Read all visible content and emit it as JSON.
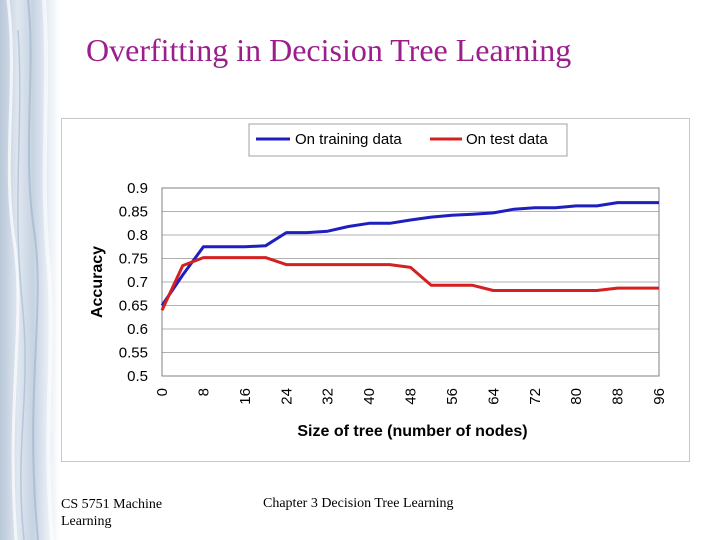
{
  "slide": {
    "title": "Overfitting in Decision Tree Learning",
    "footer_left": "CS 5751 Machine Learning",
    "footer_center": "Chapter 3  Decision Tree Learning"
  },
  "colors": {
    "title": "#9b1e8c",
    "training": "#1f1fbf",
    "test": "#d42020"
  },
  "chart_data": {
    "type": "line",
    "xlabel": "Size of tree (number of nodes)",
    "ylabel": "Accuracy",
    "xlim": [
      0,
      96
    ],
    "ylim": [
      0.5,
      0.9
    ],
    "x_ticks": [
      0,
      8,
      16,
      24,
      32,
      40,
      48,
      56,
      64,
      72,
      80,
      88,
      96
    ],
    "y_ticks": [
      0.5,
      0.55,
      0.6,
      0.65,
      0.7,
      0.75,
      0.8,
      0.85,
      0.9
    ],
    "y_tick_labels": [
      "0.5",
      "0.55",
      "0.6",
      "0.65",
      "0.7",
      "0.75",
      "0.8",
      "0.85",
      "0.9"
    ],
    "legend_position": "top",
    "grid": true,
    "series": [
      {
        "name": "On training data",
        "color": "#1f1fbf",
        "x": [
          0,
          4,
          8,
          12,
          16,
          20,
          24,
          28,
          32,
          36,
          40,
          44,
          48,
          52,
          56,
          60,
          64,
          68,
          72,
          76,
          80,
          84,
          88,
          92,
          96
        ],
        "y": [
          0.65,
          0.715,
          0.775,
          0.775,
          0.775,
          0.777,
          0.805,
          0.805,
          0.808,
          0.818,
          0.825,
          0.825,
          0.832,
          0.838,
          0.842,
          0.844,
          0.847,
          0.855,
          0.858,
          0.858,
          0.862,
          0.862,
          0.869,
          0.869,
          0.869
        ]
      },
      {
        "name": "On test data",
        "color": "#d42020",
        "x": [
          0,
          4,
          8,
          12,
          16,
          20,
          24,
          28,
          32,
          36,
          40,
          44,
          48,
          52,
          56,
          60,
          64,
          68,
          72,
          76,
          80,
          84,
          88,
          92,
          96
        ],
        "y": [
          0.64,
          0.735,
          0.752,
          0.752,
          0.752,
          0.752,
          0.737,
          0.737,
          0.737,
          0.737,
          0.737,
          0.737,
          0.731,
          0.693,
          0.693,
          0.693,
          0.682,
          0.682,
          0.682,
          0.682,
          0.682,
          0.682,
          0.687,
          0.687,
          0.687
        ]
      }
    ]
  }
}
